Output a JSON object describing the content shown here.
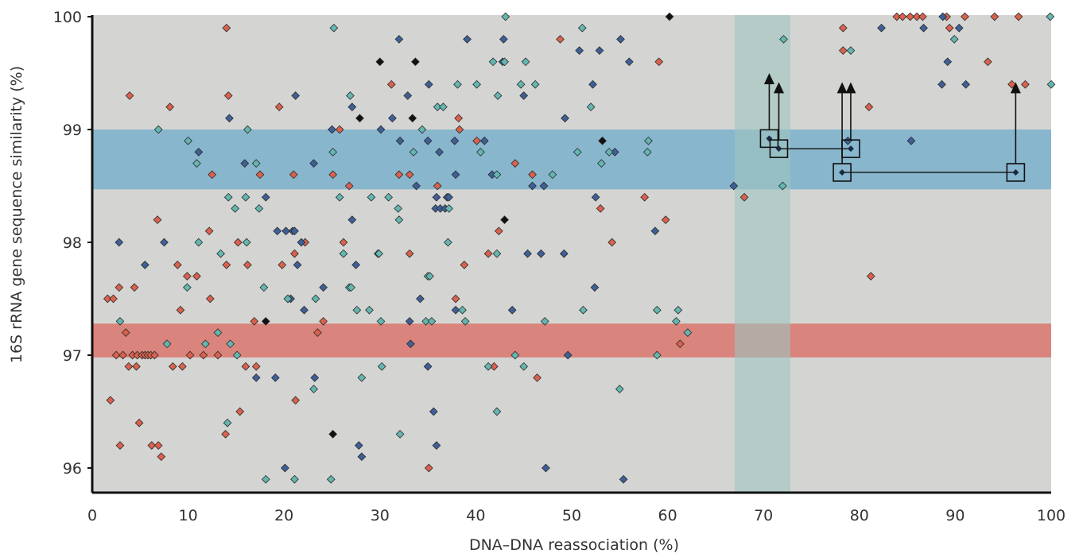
{
  "chart_data": {
    "type": "scatter",
    "title": "",
    "xlabel": "DNA–DNA reassociation (%)",
    "ylabel": "16S rRNA gene sequence similarity (%)",
    "xlim": [
      0,
      100
    ],
    "ylim": [
      95.9,
      100
    ],
    "x_ticks": [
      "0",
      "10",
      "20",
      "30",
      "40",
      "50",
      "60",
      "70",
      "80",
      "90",
      "100"
    ],
    "y_ticks": [
      "96",
      "97",
      "98",
      "99",
      "100"
    ],
    "grid": false,
    "legend": "none",
    "background_color": "#d4d5d2",
    "bands": [
      {
        "axis": "y",
        "from": 98.47,
        "to": 99.0,
        "color": "#7fb3cc"
      },
      {
        "axis": "y",
        "from": 96.98,
        "to": 97.28,
        "color": "#d97b72"
      },
      {
        "axis": "x",
        "from": 67.0,
        "to": 72.8,
        "color": "#9ec5c0"
      }
    ],
    "series": [
      {
        "color": "#d9614d",
        "points": [
          [
            1.6,
            97.5
          ],
          [
            2.2,
            97.5
          ],
          [
            1.9,
            96.6
          ],
          [
            2.5,
            97.0
          ],
          [
            2.8,
            97.6
          ],
          [
            2.9,
            96.2
          ],
          [
            3.2,
            97.0
          ],
          [
            3.5,
            97.2
          ],
          [
            3.8,
            96.9
          ],
          [
            4.2,
            97.0
          ],
          [
            3.9,
            99.3
          ],
          [
            4.4,
            97.6
          ],
          [
            4.7,
            97.0
          ],
          [
            4.6,
            96.9
          ],
          [
            4.9,
            96.4
          ],
          [
            5.2,
            97.0
          ],
          [
            5.5,
            97.0
          ],
          [
            5.8,
            97.0
          ],
          [
            6.1,
            97.0
          ],
          [
            6.2,
            96.2
          ],
          [
            6.5,
            97.0
          ],
          [
            6.8,
            98.2
          ],
          [
            6.9,
            96.2
          ],
          [
            7.2,
            96.1
          ],
          [
            8.1,
            99.2
          ],
          [
            8.4,
            96.9
          ],
          [
            8.9,
            97.8
          ],
          [
            9.2,
            97.4
          ],
          [
            9.4,
            96.9
          ],
          [
            9.9,
            97.7
          ],
          [
            10.2,
            97.0
          ],
          [
            10.9,
            97.7
          ],
          [
            11.6,
            97.0
          ],
          [
            12.2,
            98.1
          ],
          [
            12.3,
            97.5
          ],
          [
            12.5,
            98.6
          ],
          [
            13.1,
            97.0
          ],
          [
            14.0,
            99.9
          ],
          [
            13.9,
            96.3
          ],
          [
            14.2,
            99.3
          ],
          [
            14.0,
            97.8
          ],
          [
            15.2,
            98.0
          ],
          [
            15.4,
            96.5
          ],
          [
            16.2,
            97.8
          ],
          [
            16.0,
            96.9
          ],
          [
            16.9,
            97.3
          ],
          [
            17.1,
            96.9
          ],
          [
            17.5,
            98.6
          ],
          [
            19.5,
            99.2
          ],
          [
            19.8,
            97.8
          ],
          [
            20.4,
            97.5
          ],
          [
            21.0,
            98.6
          ],
          [
            21.1,
            97.9
          ],
          [
            21.2,
            96.6
          ],
          [
            22.2,
            98.0
          ],
          [
            23.5,
            97.2
          ],
          [
            24.1,
            97.3
          ],
          [
            25.1,
            98.6
          ],
          [
            25.8,
            99.0
          ],
          [
            26.2,
            98.0
          ],
          [
            26.8,
            98.5
          ],
          [
            31.2,
            99.4
          ],
          [
            32.0,
            98.6
          ],
          [
            33.1,
            97.9
          ],
          [
            33.1,
            98.6
          ],
          [
            35.1,
            96.0
          ],
          [
            36.0,
            98.5
          ],
          [
            37.9,
            97.5
          ],
          [
            38.2,
            99.1
          ],
          [
            38.3,
            99.0
          ],
          [
            38.8,
            97.8
          ],
          [
            40.1,
            98.9
          ],
          [
            41.3,
            97.9
          ],
          [
            41.9,
            96.9
          ],
          [
            42.4,
            98.1
          ],
          [
            44.1,
            98.7
          ],
          [
            45.9,
            98.6
          ],
          [
            46.4,
            96.8
          ],
          [
            48.8,
            99.8
          ],
          [
            53.0,
            98.3
          ],
          [
            54.2,
            98.0
          ],
          [
            57.6,
            98.4
          ],
          [
            59.1,
            99.6
          ],
          [
            59.8,
            98.2
          ],
          [
            61.3,
            97.1
          ],
          [
            68.0,
            98.4
          ],
          [
            78.3,
            99.9
          ],
          [
            78.3,
            99.7
          ],
          [
            81.0,
            99.2
          ],
          [
            81.2,
            97.7
          ],
          [
            83.9,
            100.0
          ],
          [
            84.5,
            100.0
          ],
          [
            85.3,
            100.0
          ],
          [
            86.0,
            100.0
          ],
          [
            86.6,
            100.0
          ],
          [
            89.1,
            100.0
          ],
          [
            89.4,
            99.9
          ],
          [
            91.0,
            100.0
          ],
          [
            93.4,
            99.6
          ],
          [
            94.1,
            100.0
          ],
          [
            95.9,
            99.4
          ],
          [
            96.6,
            100.0
          ],
          [
            97.3,
            99.4
          ]
        ]
      },
      {
        "color": "#3f5f97",
        "points": [
          [
            2.8,
            98.0
          ],
          [
            5.5,
            97.8
          ],
          [
            7.5,
            98.0
          ],
          [
            11.1,
            98.8
          ],
          [
            14.3,
            99.1
          ],
          [
            15.9,
            98.7
          ],
          [
            17.1,
            96.8
          ],
          [
            18.1,
            98.4
          ],
          [
            19.1,
            96.8
          ],
          [
            19.3,
            98.1
          ],
          [
            20.1,
            96.0
          ],
          [
            20.2,
            98.1
          ],
          [
            20.7,
            97.5
          ],
          [
            20.9,
            98.1
          ],
          [
            21.1,
            98.1
          ],
          [
            21.2,
            99.3
          ],
          [
            21.4,
            97.8
          ],
          [
            21.8,
            98.0
          ],
          [
            22.1,
            97.4
          ],
          [
            23.1,
            98.7
          ],
          [
            23.2,
            96.8
          ],
          [
            24.1,
            97.6
          ],
          [
            25.0,
            99.0
          ],
          [
            27.1,
            99.2
          ],
          [
            27.1,
            98.2
          ],
          [
            27.5,
            97.8
          ],
          [
            27.8,
            96.2
          ],
          [
            28.1,
            96.1
          ],
          [
            29.8,
            97.9
          ],
          [
            30.1,
            99.0
          ],
          [
            31.3,
            99.1
          ],
          [
            32.0,
            99.8
          ],
          [
            32.1,
            98.9
          ],
          [
            32.9,
            99.3
          ],
          [
            33.1,
            97.3
          ],
          [
            33.2,
            97.1
          ],
          [
            33.8,
            98.5
          ],
          [
            34.2,
            97.5
          ],
          [
            35.0,
            98.9
          ],
          [
            35.0,
            96.9
          ],
          [
            35.1,
            99.4
          ],
          [
            35.6,
            96.5
          ],
          [
            35.8,
            98.3
          ],
          [
            35.9,
            96.2
          ],
          [
            35.9,
            98.4
          ],
          [
            36.2,
            98.8
          ],
          [
            36.3,
            98.3
          ],
          [
            36.8,
            98.3
          ],
          [
            37.0,
            98.4
          ],
          [
            37.2,
            98.4
          ],
          [
            37.9,
            97.4
          ],
          [
            37.9,
            98.6
          ],
          [
            37.8,
            98.9
          ],
          [
            39.1,
            99.8
          ],
          [
            40.9,
            98.9
          ],
          [
            41.7,
            98.6
          ],
          [
            42.9,
            99.8
          ],
          [
            42.8,
            99.6
          ],
          [
            43.8,
            97.4
          ],
          [
            45.0,
            99.3
          ],
          [
            45.4,
            97.9
          ],
          [
            45.9,
            98.5
          ],
          [
            46.8,
            97.9
          ],
          [
            47.1,
            98.5
          ],
          [
            47.3,
            96.0
          ],
          [
            49.2,
            97.9
          ],
          [
            49.3,
            99.1
          ],
          [
            49.6,
            97.0
          ],
          [
            50.8,
            99.7
          ],
          [
            52.2,
            99.4
          ],
          [
            52.4,
            97.6
          ],
          [
            52.5,
            98.4
          ],
          [
            52.9,
            99.7
          ],
          [
            54.5,
            98.8
          ],
          [
            55.1,
            99.8
          ],
          [
            55.4,
            95.9
          ],
          [
            56.0,
            99.6
          ],
          [
            58.7,
            98.1
          ],
          [
            66.9,
            98.5
          ],
          [
            78.8,
            98.9
          ],
          [
            82.3,
            99.9
          ],
          [
            85.4,
            98.9
          ],
          [
            86.7,
            99.9
          ],
          [
            88.6,
            99.4
          ],
          [
            88.7,
            100.0
          ],
          [
            89.2,
            99.6
          ],
          [
            90.4,
            99.9
          ],
          [
            91.1,
            99.4
          ]
        ]
      },
      {
        "color": "#63b7b0",
        "points": [
          [
            2.9,
            97.3
          ],
          [
            6.9,
            99.0
          ],
          [
            7.8,
            97.1
          ],
          [
            9.9,
            97.6
          ],
          [
            10.0,
            98.9
          ],
          [
            10.9,
            98.7
          ],
          [
            11.1,
            98.0
          ],
          [
            11.8,
            97.1
          ],
          [
            13.1,
            97.2
          ],
          [
            13.4,
            97.9
          ],
          [
            14.1,
            96.4
          ],
          [
            14.2,
            98.4
          ],
          [
            14.4,
            97.1
          ],
          [
            14.9,
            98.3
          ],
          [
            15.1,
            97.0
          ],
          [
            16.0,
            98.4
          ],
          [
            16.1,
            98.0
          ],
          [
            16.2,
            99.0
          ],
          [
            17.1,
            98.7
          ],
          [
            17.4,
            98.3
          ],
          [
            17.9,
            97.6
          ],
          [
            18.1,
            95.9
          ],
          [
            20.4,
            97.5
          ],
          [
            21.1,
            95.9
          ],
          [
            23.1,
            96.7
          ],
          [
            23.3,
            97.5
          ],
          [
            24.9,
            95.9
          ],
          [
            25.1,
            98.8
          ],
          [
            25.2,
            99.9
          ],
          [
            25.8,
            98.4
          ],
          [
            26.2,
            97.9
          ],
          [
            26.8,
            97.6
          ],
          [
            26.9,
            99.3
          ],
          [
            27.0,
            97.6
          ],
          [
            27.6,
            97.4
          ],
          [
            28.1,
            96.8
          ],
          [
            28.9,
            97.4
          ],
          [
            29.1,
            98.4
          ],
          [
            29.9,
            97.9
          ],
          [
            30.1,
            97.3
          ],
          [
            30.2,
            96.9
          ],
          [
            30.9,
            98.4
          ],
          [
            31.9,
            98.3
          ],
          [
            32.0,
            98.2
          ],
          [
            32.1,
            96.3
          ],
          [
            33.5,
            98.8
          ],
          [
            34.4,
            99.0
          ],
          [
            34.8,
            97.3
          ],
          [
            35.0,
            97.7
          ],
          [
            35.2,
            97.7
          ],
          [
            35.4,
            97.3
          ],
          [
            36.0,
            99.2
          ],
          [
            36.6,
            99.2
          ],
          [
            37.1,
            98.0
          ],
          [
            37.2,
            98.3
          ],
          [
            38.1,
            99.4
          ],
          [
            38.6,
            97.4
          ],
          [
            38.9,
            97.3
          ],
          [
            40.1,
            99.4
          ],
          [
            40.5,
            98.8
          ],
          [
            41.3,
            96.9
          ],
          [
            41.8,
            99.6
          ],
          [
            42.2,
            97.9
          ],
          [
            42.2,
            96.5
          ],
          [
            42.2,
            98.6
          ],
          [
            42.3,
            99.3
          ],
          [
            43.1,
            100.0
          ],
          [
            43.0,
            99.6
          ],
          [
            44.1,
            97.0
          ],
          [
            44.7,
            99.4
          ],
          [
            45.2,
            99.6
          ],
          [
            45.0,
            96.9
          ],
          [
            46.2,
            99.4
          ],
          [
            47.2,
            97.3
          ],
          [
            48.0,
            98.6
          ],
          [
            50.6,
            98.8
          ],
          [
            51.1,
            99.9
          ],
          [
            51.2,
            97.4
          ],
          [
            52.0,
            99.2
          ],
          [
            53.1,
            98.7
          ],
          [
            53.9,
            98.8
          ],
          [
            55.0,
            96.7
          ],
          [
            57.9,
            98.8
          ],
          [
            58.0,
            98.9
          ],
          [
            58.9,
            97.4
          ],
          [
            58.9,
            97.0
          ],
          [
            60.9,
            97.3
          ],
          [
            61.1,
            97.4
          ],
          [
            62.1,
            97.2
          ],
          [
            72.1,
            99.8
          ],
          [
            72.0,
            98.5
          ],
          [
            79.1,
            99.7
          ],
          [
            89.9,
            99.8
          ],
          [
            99.9,
            100.0
          ],
          [
            100.0,
            99.4
          ]
        ]
      },
      {
        "color": "#111111",
        "points": [
          [
            18.1,
            97.3
          ],
          [
            25.1,
            96.3
          ],
          [
            27.9,
            99.1
          ],
          [
            30.0,
            99.6
          ],
          [
            33.4,
            99.1
          ],
          [
            33.7,
            99.6
          ],
          [
            43.0,
            98.2
          ],
          [
            53.2,
            98.9
          ],
          [
            60.2,
            100.0
          ]
        ]
      }
    ],
    "highlighted_points": [
      {
        "x": 70.6,
        "y": 98.92,
        "arrow_to": 99.5
      },
      {
        "x": 71.6,
        "y": 98.83,
        "arrow_to": 99.42
      },
      {
        "x": 78.2,
        "y": 98.62,
        "arrow_to": 99.42
      },
      {
        "x": 79.1,
        "y": 98.83,
        "arrow_to": 99.42
      },
      {
        "x": 96.3,
        "y": 98.62,
        "arrow_to": 99.42
      }
    ],
    "connectors": [
      {
        "from": [
          71.6,
          98.83
        ],
        "to": [
          79.1,
          98.83
        ]
      },
      {
        "from": [
          78.2,
          98.62
        ],
        "to": [
          96.3,
          98.62
        ]
      }
    ]
  }
}
